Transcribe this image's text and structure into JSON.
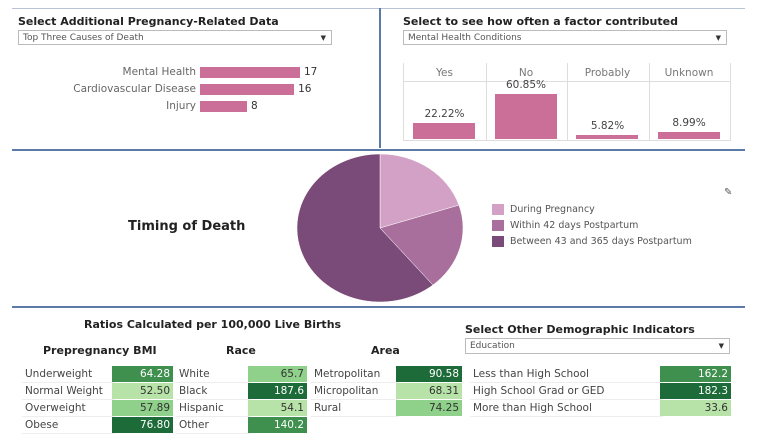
{
  "causes": {
    "title": "Select Additional Pregnancy-Related Data",
    "dropdown": "Top Three Causes of Death",
    "items": [
      {
        "label": "Mental Health",
        "value": 17
      },
      {
        "label": "Cardiovascular Disease",
        "value": 16
      },
      {
        "label": "Injury",
        "value": 8
      }
    ]
  },
  "factor": {
    "title": "Select to see how often a factor contributed",
    "dropdown": "Mental Health Conditions",
    "columns": [
      {
        "label": "Yes",
        "value": 22.22,
        "text": "22.22%"
      },
      {
        "label": "No",
        "value": 60.85,
        "text": "60.85%"
      },
      {
        "label": "Probably",
        "value": 5.82,
        "text": "5.82%"
      },
      {
        "label": "Unknown",
        "value": 8.99,
        "text": "8.99%"
      }
    ]
  },
  "timing": {
    "title": "Timing of Death",
    "legend": [
      {
        "label": "During Pregnancy",
        "color": "#d4a1c6",
        "share": 20
      },
      {
        "label": "Within 42 days Postpartum",
        "color": "#a86f9d",
        "share": 19
      },
      {
        "label": "Between 43 and 365 days Postpartum",
        "color": "#7a4a78",
        "share": 61
      }
    ]
  },
  "ratios": {
    "title": "Ratios Calculated per 100,000 Live Births",
    "bmi": {
      "title": "Prepregnancy BMI",
      "rows": [
        [
          "Underweight",
          "64.28"
        ],
        [
          "Normal Weight",
          "52.50"
        ],
        [
          "Overweight",
          "57.89"
        ],
        [
          "Obese",
          "76.80"
        ]
      ]
    },
    "race": {
      "title": "Race",
      "rows": [
        [
          "White",
          "65.7"
        ],
        [
          "Black",
          "187.6"
        ],
        [
          "Hispanic",
          "54.1"
        ],
        [
          "Other",
          "140.2"
        ]
      ]
    },
    "area": {
      "title": "Area",
      "rows": [
        [
          "Metropolitan",
          "90.58"
        ],
        [
          "Micropolitan",
          "68.31"
        ],
        [
          "Rural",
          "74.25"
        ]
      ]
    },
    "other": {
      "title": "Select Other Demographic Indicators",
      "dropdown": "Education",
      "rows": [
        [
          "Less than High School",
          "162.2"
        ],
        [
          "High School Grad or GED",
          "182.3"
        ],
        [
          "More than High School",
          "33.6"
        ]
      ]
    }
  },
  "colors": {
    "bar": "#cc6f98",
    "green_dark": "#1e6b3a",
    "green_mid": "#3f8f4e",
    "green_light": "#8fd18a",
    "green_pale": "#b7e3a8",
    "divider": "#5b7aa8"
  }
}
